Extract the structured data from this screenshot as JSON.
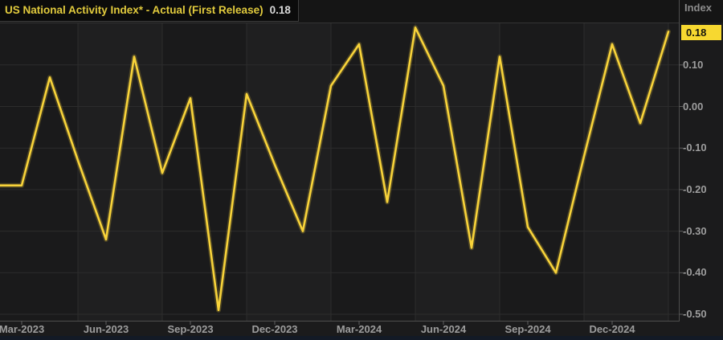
{
  "header": {
    "title": "US National Activity Index* - Actual (First Release)",
    "value": "0.18",
    "axis_title": "Index"
  },
  "badge": {
    "value": "0.18"
  },
  "colors": {
    "line": "#f8d33a",
    "title_text": "#e2cb3d",
    "badge_bg": "#f7d830",
    "axis_label": "#9d9d9d",
    "grid": "#2c2c2c",
    "axis_line": "#4d4d4d",
    "band_dark": "#1a1a1b",
    "band_light": "#1f1f20",
    "header_bg": "#151515"
  },
  "chart_data": {
    "type": "line",
    "title": "US National Activity Index* - Actual (First Release)",
    "xlabel": "",
    "ylabel": "Index",
    "legend_position": "none",
    "grid": true,
    "x": [
      "Feb-2023",
      "Mar-2023",
      "Apr-2023",
      "May-2023",
      "Jun-2023",
      "Jul-2023",
      "Aug-2023",
      "Sep-2023",
      "Oct-2023",
      "Nov-2023",
      "Dec-2023",
      "Jan-2024",
      "Feb-2024",
      "Mar-2024",
      "Apr-2024",
      "May-2024",
      "Jun-2024",
      "Jul-2024",
      "Aug-2024",
      "Sep-2024",
      "Oct-2024",
      "Nov-2024",
      "Dec-2024",
      "Jan-2025",
      "Feb-2025"
    ],
    "values": [
      -0.19,
      -0.19,
      0.07,
      -0.13,
      -0.32,
      0.12,
      -0.16,
      0.02,
      -0.49,
      0.03,
      -0.14,
      -0.3,
      0.05,
      0.15,
      -0.23,
      0.19,
      0.05,
      -0.34,
      0.12,
      -0.29,
      -0.4,
      -0.12,
      0.15,
      -0.04,
      0.18
    ],
    "last_value": 0.18,
    "x_tick_labels": [
      "Mar-2023",
      "Jun-2023",
      "Sep-2023",
      "Dec-2023",
      "Mar-2024",
      "Jun-2024",
      "Sep-2024",
      "Dec-2024"
    ],
    "y_tick_labels": [
      "0.10",
      "0.00",
      "-0.10",
      "-0.20",
      "-0.30",
      "-0.40",
      "-0.50"
    ],
    "ylim": [
      -0.52,
      0.21
    ]
  }
}
